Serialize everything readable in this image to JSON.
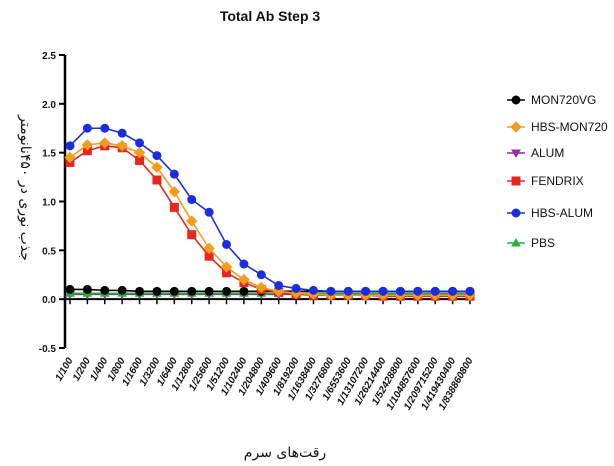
{
  "chart_data": {
    "type": "line",
    "title": "Total Ab Step 3",
    "xlabel": "رقت‌های سرم",
    "ylabel": "جذب نوری در ۴۵۰نانومتر",
    "ylim": [
      -0.5,
      2.5
    ],
    "yticks": [
      "2.5",
      "2.0",
      "1.5",
      "1.0",
      "0.5",
      "0.0",
      "-0.5"
    ],
    "ytick_values": [
      2.5,
      2.0,
      1.5,
      1.0,
      0.5,
      0.0,
      -0.5
    ],
    "legend_position": "right",
    "categories": [
      "1/100",
      "1/200",
      "1/400",
      "1/800",
      "1/1600",
      "1/3200",
      "1/6400",
      "1/12800",
      "1/25600",
      "1/51200",
      "1/102400",
      "1/204800",
      "1/409600",
      "1/819200",
      "1/1638400",
      "1/3276800",
      "1/6553600",
      "1/13107200",
      "1/26214400",
      "1/52428800",
      "1/104857600",
      "1/209715200",
      "1/419430400",
      "1/838860800"
    ],
    "series": [
      {
        "name": "MON720VG",
        "color": "#000000",
        "marker": "circle",
        "values": [
          0.1,
          0.1,
          0.09,
          0.09,
          0.08,
          0.08,
          0.08,
          0.08,
          0.08,
          0.08,
          0.08,
          0.08,
          0.08,
          0.08,
          0.08,
          0.08,
          0.08,
          0.08,
          0.08,
          0.08,
          0.08,
          0.08,
          0.08,
          0.08
        ]
      },
      {
        "name": "HBS-MON720",
        "color": "#f39c1f",
        "marker": "diamond",
        "values": [
          1.45,
          1.58,
          1.6,
          1.57,
          1.5,
          1.35,
          1.1,
          0.8,
          0.52,
          0.33,
          0.2,
          0.12,
          0.08,
          0.06,
          0.05,
          0.04,
          0.04,
          0.04,
          0.04,
          0.04,
          0.04,
          0.04,
          0.04,
          0.04
        ]
      },
      {
        "name": "ALUM",
        "color": "#9b27b0",
        "marker": "triangle-down",
        "values": [
          0.05,
          0.05,
          0.05,
          0.05,
          0.05,
          0.05,
          0.05,
          0.05,
          0.05,
          0.05,
          0.05,
          0.05,
          0.05,
          0.05,
          0.05,
          0.05,
          0.05,
          0.05,
          0.05,
          0.05,
          0.05,
          0.05,
          0.05,
          0.05
        ]
      },
      {
        "name": "FENDRIX",
        "color": "#e8261f",
        "marker": "square",
        "values": [
          1.4,
          1.52,
          1.57,
          1.55,
          1.42,
          1.22,
          0.94,
          0.66,
          0.44,
          0.27,
          0.17,
          0.1,
          0.07,
          0.05,
          0.04,
          0.04,
          0.04,
          0.04,
          0.03,
          0.03,
          0.03,
          0.03,
          0.03,
          0.03
        ]
      },
      {
        "name": "HBS-ALUM",
        "color": "#1a2ee0",
        "marker": "circle",
        "values": [
          1.57,
          1.75,
          1.75,
          1.7,
          1.6,
          1.47,
          1.28,
          1.02,
          0.89,
          0.56,
          0.36,
          0.25,
          0.14,
          0.11,
          0.09,
          0.08,
          0.08,
          0.08,
          0.08,
          0.08,
          0.08,
          0.08,
          0.08,
          0.08
        ]
      },
      {
        "name": "PBS",
        "color": "#22b33a",
        "marker": "triangle-up",
        "values": [
          0.06,
          0.06,
          0.06,
          0.06,
          0.06,
          0.06,
          0.06,
          0.06,
          0.06,
          0.06,
          0.06,
          0.06,
          0.06,
          0.06,
          0.06,
          0.06,
          0.06,
          0.06,
          0.06,
          0.06,
          0.06,
          0.06,
          0.06,
          0.06
        ]
      }
    ]
  }
}
